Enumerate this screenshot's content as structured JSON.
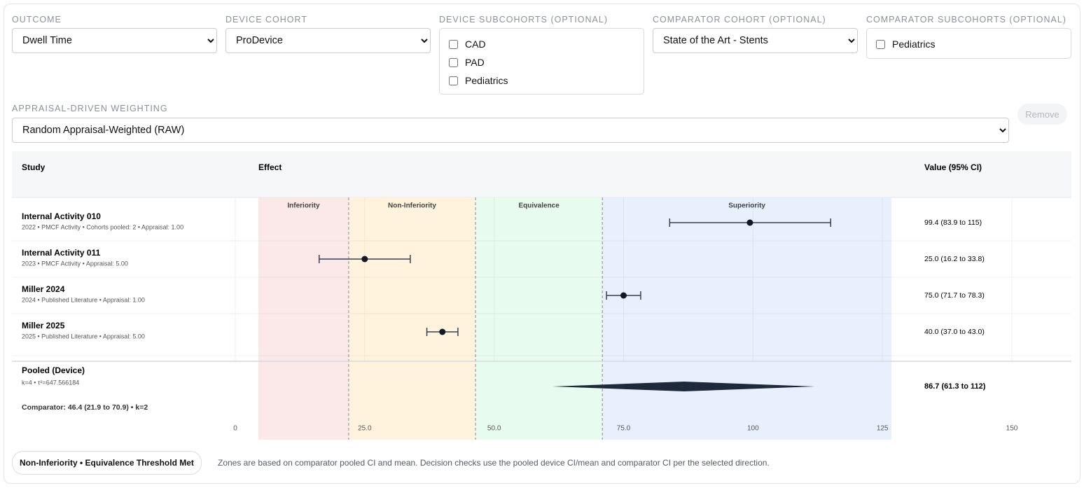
{
  "filters": {
    "outcome": {
      "label": "OUTCOME",
      "selected": "Dwell Time"
    },
    "device_cohort": {
      "label": "DEVICE COHORT",
      "selected": "ProDevice"
    },
    "device_subcohorts": {
      "label": "DEVICE SUBCOHORTS (OPTIONAL)",
      "options": [
        "CAD",
        "PAD",
        "Pediatrics"
      ]
    },
    "comparator_cohort": {
      "label": "COMPARATOR COHORT (OPTIONAL)",
      "selected": "State of the Art - Stents"
    },
    "comparator_subcohorts": {
      "label": "COMPARATOR SUBCOHORTS (OPTIONAL)",
      "options": [
        "Pediatrics"
      ]
    },
    "weighting": {
      "label": "APPRAISAL-DRIVEN WEIGHTING",
      "selected": "Random Appraisal-Weighted (RAW)"
    },
    "remove_button": "Remove"
  },
  "chart_data": {
    "type": "forest",
    "columns": {
      "study": "Study",
      "effect": "Effect",
      "value": "Value (95% CI)"
    },
    "xlim": [
      0,
      150
    ],
    "xticks": [
      0,
      {
        "value": 25,
        "label": "25.0"
      },
      {
        "value": 50,
        "label": "50.0"
      },
      {
        "value": 75,
        "label": "75.0"
      },
      100,
      125,
      150
    ],
    "zones": {
      "labels": [
        "Inferiority",
        "Non-Inferiority",
        "Equivalence",
        "Superiority"
      ],
      "colors": [
        "#fbe9ea",
        "#fff3de",
        "#e8fbef",
        "#e8f0fd"
      ],
      "thresholds": [
        21.9,
        46.4,
        70.9
      ]
    },
    "point_color": "#111827",
    "studies": [
      {
        "name": "Internal Activity 010",
        "details": "2022 • PMCF Activity • Cohorts pooled: 2 • Appraisal: 1.00",
        "estimate": 99.4,
        "lower": 83.9,
        "upper": 115,
        "value_label": "99.4 (83.9 to 115)"
      },
      {
        "name": "Internal Activity 011",
        "details": "2023 • PMCF Activity • Appraisal: 5.00",
        "estimate": 25.0,
        "lower": 16.2,
        "upper": 33.8,
        "value_label": "25.0 (16.2 to 33.8)"
      },
      {
        "name": "Miller 2024",
        "details": "2024 • Published Literature • Appraisal: 1.00",
        "estimate": 75.0,
        "lower": 71.7,
        "upper": 78.3,
        "value_label": "75.0 (71.7 to 78.3)"
      },
      {
        "name": "Miller 2025",
        "details": "2025 • Published Literature • Appraisal: 5.00",
        "estimate": 40.0,
        "lower": 37.0,
        "upper": 43.0,
        "value_label": "40.0 (37.0 to 43.0)"
      }
    ],
    "pooled": {
      "name": "Pooled (Device)",
      "details": "k=4 • τ²=647.566184",
      "estimate": 86.7,
      "lower": 61.3,
      "upper": 112,
      "value_label": "86.7 (61.3 to 112)",
      "comparator_summary": "Comparator: 46.4 (21.9 to 70.9) • k=2"
    }
  },
  "footer": {
    "badge": "Non-Inferiority • Equivalence Threshold Met",
    "note": "Zones are based on comparator pooled CI and mean. Decision checks use the pooled device CI/mean and comparator CI per the selected direction."
  }
}
